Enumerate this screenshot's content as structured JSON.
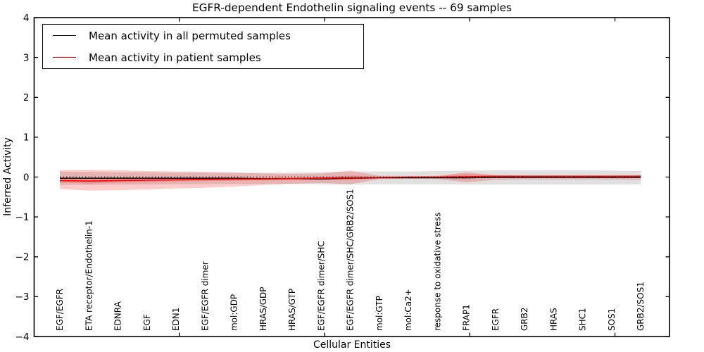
{
  "chart_data": {
    "type": "line",
    "title": "EGFR-dependent Endothelin signaling events -- 69 samples",
    "xlabel": "Cellular Entities",
    "ylabel": "Inferred Activity",
    "ylim": [
      -4,
      4
    ],
    "yticks": [
      4,
      3,
      2,
      1,
      0,
      -1,
      -2,
      -3,
      -4
    ],
    "ytick_labels": [
      "4",
      "3",
      "2",
      "1",
      "0",
      "−1",
      "−2",
      "−3",
      "−4"
    ],
    "grid": false,
    "legend_position": "upper-left",
    "categories": [
      "EGF/EGFR",
      "ETA receptor/Endothelin-1",
      "EDNRA",
      "EGF",
      "EDN1",
      "EGF/EGFR dimer",
      "mol:GDP",
      "HRAS/GDP",
      "HRAS/GTP",
      "EGF/EGFR dimer/SHC",
      "EGF/EGFR dimer/SHC/GRB2/SOS1",
      "mol:GTP",
      "mol:Ca2+",
      "response to oxidative stress",
      "FRAP1",
      "EGFR",
      "GRB2",
      "HRAS",
      "SHC1",
      "SOS1",
      "GRB2/SOS1"
    ],
    "series": [
      {
        "name": "Mean activity in all permuted samples",
        "color": "#000000",
        "values": [
          -0.03,
          -0.03,
          -0.03,
          -0.03,
          -0.03,
          -0.03,
          -0.03,
          -0.04,
          -0.04,
          -0.05,
          -0.03,
          -0.02,
          -0.02,
          -0.02,
          -0.02,
          -0.01,
          -0.01,
          -0.01,
          -0.01,
          -0.01,
          -0.01
        ]
      },
      {
        "name": "Mean activity in patient samples",
        "color": "#ff0000",
        "values": [
          -0.09,
          -0.1,
          -0.09,
          -0.08,
          -0.07,
          -0.06,
          -0.05,
          -0.05,
          -0.04,
          -0.03,
          -0.02,
          -0.01,
          0.0,
          0.0,
          0.01,
          0.02,
          0.02,
          0.02,
          0.02,
          0.02,
          0.02
        ]
      }
    ],
    "bands": [
      {
        "name": "permuted-samples-range",
        "color": "#000000",
        "opacity": 0.12,
        "upper": [
          0.14,
          0.13,
          0.12,
          0.12,
          0.11,
          0.11,
          0.11,
          0.11,
          0.11,
          0.12,
          0.14,
          0.14,
          0.14,
          0.15,
          0.16,
          0.17,
          0.17,
          0.17,
          0.17,
          0.16,
          0.15
        ],
        "lower": [
          -0.2,
          -0.2,
          -0.19,
          -0.19,
          -0.18,
          -0.18,
          -0.17,
          -0.17,
          -0.17,
          -0.18,
          -0.19,
          -0.18,
          -0.18,
          -0.18,
          -0.19,
          -0.19,
          -0.19,
          -0.19,
          -0.19,
          -0.19,
          -0.18
        ]
      },
      {
        "name": "patient-samples-range-outer",
        "color": "#ff0000",
        "opacity": 0.2,
        "upper": [
          0.17,
          0.18,
          0.17,
          0.15,
          0.14,
          0.13,
          0.11,
          0.09,
          0.08,
          0.09,
          0.16,
          0.03,
          0.02,
          0.03,
          0.12,
          0.05,
          0.04,
          0.04,
          0.04,
          0.04,
          0.05
        ],
        "lower": [
          -0.3,
          -0.34,
          -0.33,
          -0.31,
          -0.29,
          -0.27,
          -0.24,
          -0.2,
          -0.17,
          -0.15,
          -0.18,
          -0.05,
          -0.04,
          -0.05,
          -0.13,
          -0.07,
          -0.06,
          -0.06,
          -0.06,
          -0.06,
          -0.07
        ]
      },
      {
        "name": "patient-samples-range-inner",
        "color": "#ff0000",
        "opacity": 0.18,
        "upper": [
          -0.04,
          -0.05,
          -0.04,
          -0.04,
          -0.03,
          -0.02,
          -0.02,
          -0.02,
          -0.01,
          0.0,
          0.04,
          0.0,
          0.01,
          0.02,
          0.08,
          0.04,
          0.04,
          0.04,
          0.04,
          0.04,
          0.04
        ],
        "lower": [
          -0.14,
          -0.16,
          -0.14,
          -0.13,
          -0.11,
          -0.1,
          -0.09,
          -0.08,
          -0.07,
          -0.06,
          -0.08,
          -0.02,
          -0.01,
          -0.02,
          -0.06,
          0.0,
          0.0,
          0.0,
          0.0,
          0.0,
          0.0
        ]
      }
    ],
    "zero_line": {
      "y": 0,
      "style": "dotted",
      "color": "#000000"
    }
  },
  "legend": [
    {
      "label": "Mean activity in all permuted samples",
      "color": "#000000"
    },
    {
      "label": "Mean activity in patient samples",
      "color": "#ff0000"
    }
  ]
}
